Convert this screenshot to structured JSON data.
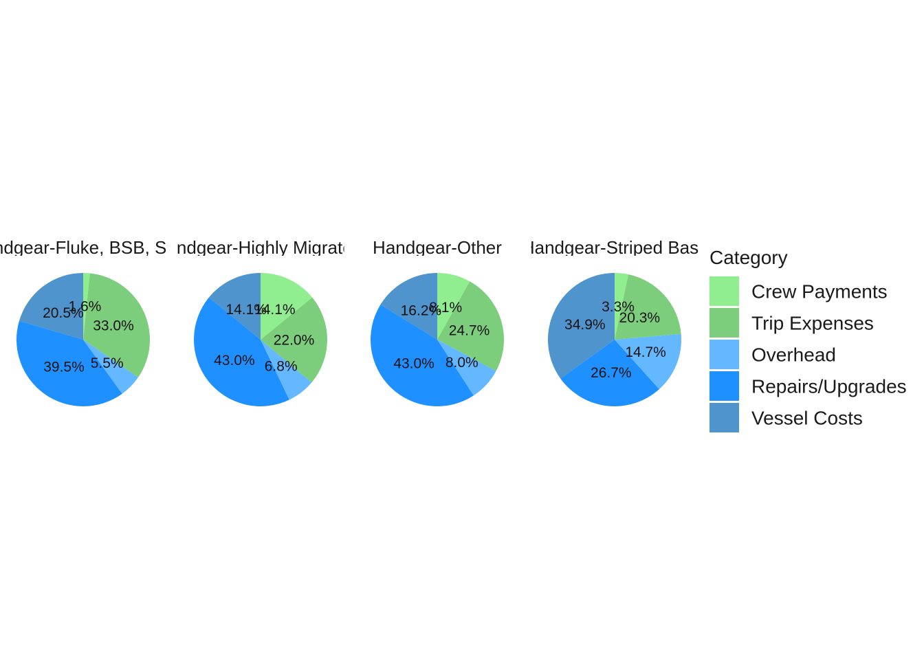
{
  "chart_data": {
    "type": "pie",
    "facets": [
      "Handgear-Fluke, BSB, Scup",
      "Handgear-Highly Migratory",
      "Handgear-Other",
      "Handgear-Striped Bass"
    ],
    "categories": [
      "Crew Payments",
      "Trip Expenses",
      "Overhead",
      "Repairs/Upgrades",
      "Vessel Costs"
    ],
    "colors": [
      "#90EE90",
      "#7CCD7C",
      "#63B8FF",
      "#1E90FF",
      "#4F94CD"
    ],
    "series": [
      {
        "name": "Handgear-Fluke, BSB, Scup",
        "values": [
          1.6,
          33.0,
          5.5,
          39.5,
          20.5
        ],
        "labels": [
          "1.6%",
          "33.0%",
          "5.5%",
          "39.5%",
          "20.5%"
        ]
      },
      {
        "name": "Handgear-Highly Migratory",
        "values": [
          14.1,
          22.0,
          6.8,
          43.0,
          14.1
        ],
        "labels": [
          "14.1%",
          "22.0%",
          "6.8%",
          "43.0%",
          "14.1%"
        ]
      },
      {
        "name": "Handgear-Other",
        "values": [
          8.1,
          24.7,
          8.0,
          43.0,
          16.2
        ],
        "labels": [
          "8.1%",
          "24.7%",
          "8.0%",
          "43.0%",
          "16.2%"
        ]
      },
      {
        "name": "Handgear-Striped Bass",
        "values": [
          3.3,
          20.3,
          14.7,
          26.7,
          34.9
        ],
        "labels": [
          "3.3%",
          "20.3%",
          "14.7%",
          "26.7%",
          "34.9%"
        ]
      }
    ],
    "legend": {
      "title": "Category",
      "position": "right"
    },
    "grid": false
  }
}
